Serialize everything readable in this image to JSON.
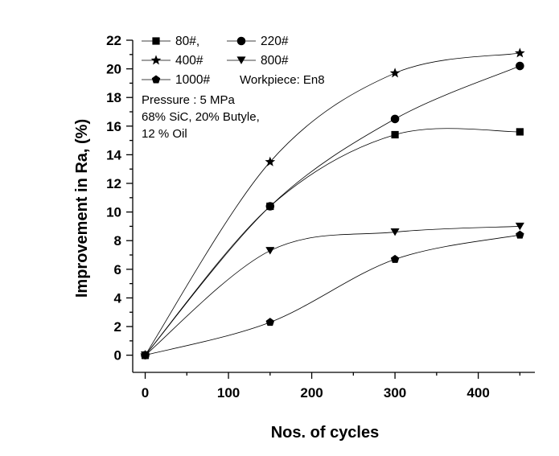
{
  "chart_data": {
    "type": "scatter",
    "title": "",
    "xlabel": "Nos. of cycles",
    "ylabel": "Improvement in Ra, (%)",
    "xlim": [
      -15,
      468
    ],
    "ylim": [
      -1.2,
      22
    ],
    "xticks": [
      0,
      100,
      200,
      300,
      400
    ],
    "yticks": [
      0,
      2,
      4,
      6,
      8,
      10,
      12,
      14,
      16,
      18,
      20,
      22
    ],
    "series": [
      {
        "name": "80#,",
        "marker": "square",
        "x": [
          0,
          150,
          300,
          450
        ],
        "y": [
          0,
          10.4,
          15.4,
          15.6
        ]
      },
      {
        "name": "220#",
        "marker": "circle",
        "x": [
          0,
          150,
          300,
          450
        ],
        "y": [
          0,
          10.4,
          16.5,
          20.2
        ]
      },
      {
        "name": "400#",
        "marker": "star",
        "x": [
          0,
          150,
          300,
          450
        ],
        "y": [
          0,
          13.5,
          19.7,
          21.1
        ]
      },
      {
        "name": "800#",
        "marker": "triangle-down",
        "x": [
          0,
          150,
          300,
          450
        ],
        "y": [
          0,
          7.3,
          8.6,
          9.0
        ]
      },
      {
        "name": "1000#",
        "marker": "pentagon",
        "x": [
          0,
          150,
          300,
          450
        ],
        "y": [
          0,
          2.3,
          6.7,
          8.4
        ]
      }
    ],
    "annotations": [
      "Workpiece: En8",
      "Pressure : 5 MPa",
      "68% SiC, 20% Butyle,",
      "12 % Oil"
    ],
    "legend_position": "top-left"
  }
}
